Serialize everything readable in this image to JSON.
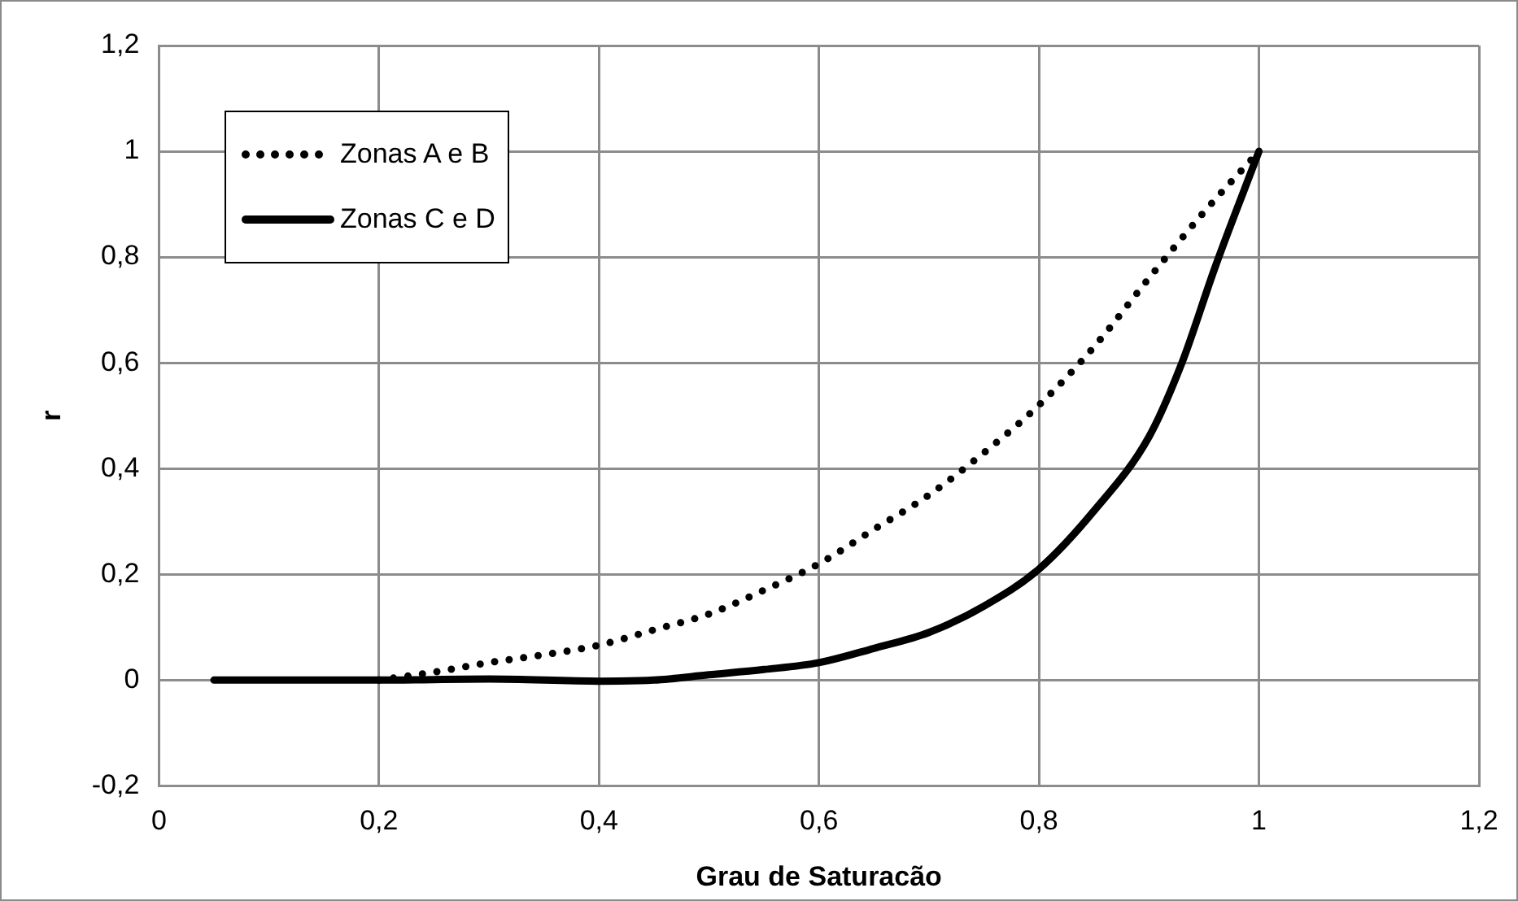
{
  "chart_data": {
    "type": "line",
    "xlabel": "Grau de Saturacão",
    "ylabel": "r",
    "xlim": [
      0,
      1.2
    ],
    "ylim": [
      -0.2,
      1.2
    ],
    "xticks": [
      0,
      {
        "value": 0.2,
        "label": "0,2"
      },
      {
        "value": 0.4,
        "label": "0,4"
      },
      {
        "value": 0.6,
        "label": "0,6"
      },
      {
        "value": 0.8,
        "label": "0,8"
      },
      1,
      {
        "value": 1.2,
        "label": "1,2"
      }
    ],
    "yticks": [
      {
        "value": -0.2,
        "label": "-0,2"
      },
      0,
      {
        "value": 0.2,
        "label": "0,2"
      },
      {
        "value": 0.4,
        "label": "0,4"
      },
      {
        "value": 0.6,
        "label": "0,6"
      },
      {
        "value": 0.8,
        "label": "0,8"
      },
      1,
      {
        "value": 1.2,
        "label": "1,2"
      }
    ],
    "grid": true,
    "legend": "top left",
    "marker": "none",
    "series": [
      {
        "name": "Zonas A e B",
        "color": "#000000",
        "line_style": "dotted",
        "x": [
          0.2,
          0.25,
          0.3,
          0.35,
          0.4,
          0.45,
          0.5,
          0.55,
          0.6,
          0.65,
          0.7,
          0.75,
          0.8,
          0.85,
          0.9,
          0.95,
          1
        ],
        "values": [
          0,
          0.015,
          0.033,
          0.048,
          0.066,
          0.095,
          0.125,
          0.17,
          0.22,
          0.285,
          0.35,
          0.43,
          0.52,
          0.63,
          0.76,
          0.885,
          1
        ]
      },
      {
        "name": "Zonas C e D",
        "color": "#000000",
        "line_style": "solid",
        "x": [
          0.05,
          0.2,
          0.3,
          0.4,
          0.45,
          0.5,
          0.55,
          0.6,
          0.65,
          0.7,
          0.75,
          0.8,
          0.85,
          0.9,
          0.93,
          0.96,
          1
        ],
        "values": [
          0,
          0,
          0.002,
          -0.002,
          0,
          0.01,
          0.02,
          0.033,
          0.06,
          0.09,
          0.14,
          0.21,
          0.32,
          0.46,
          0.6,
          0.78,
          1
        ]
      }
    ]
  }
}
